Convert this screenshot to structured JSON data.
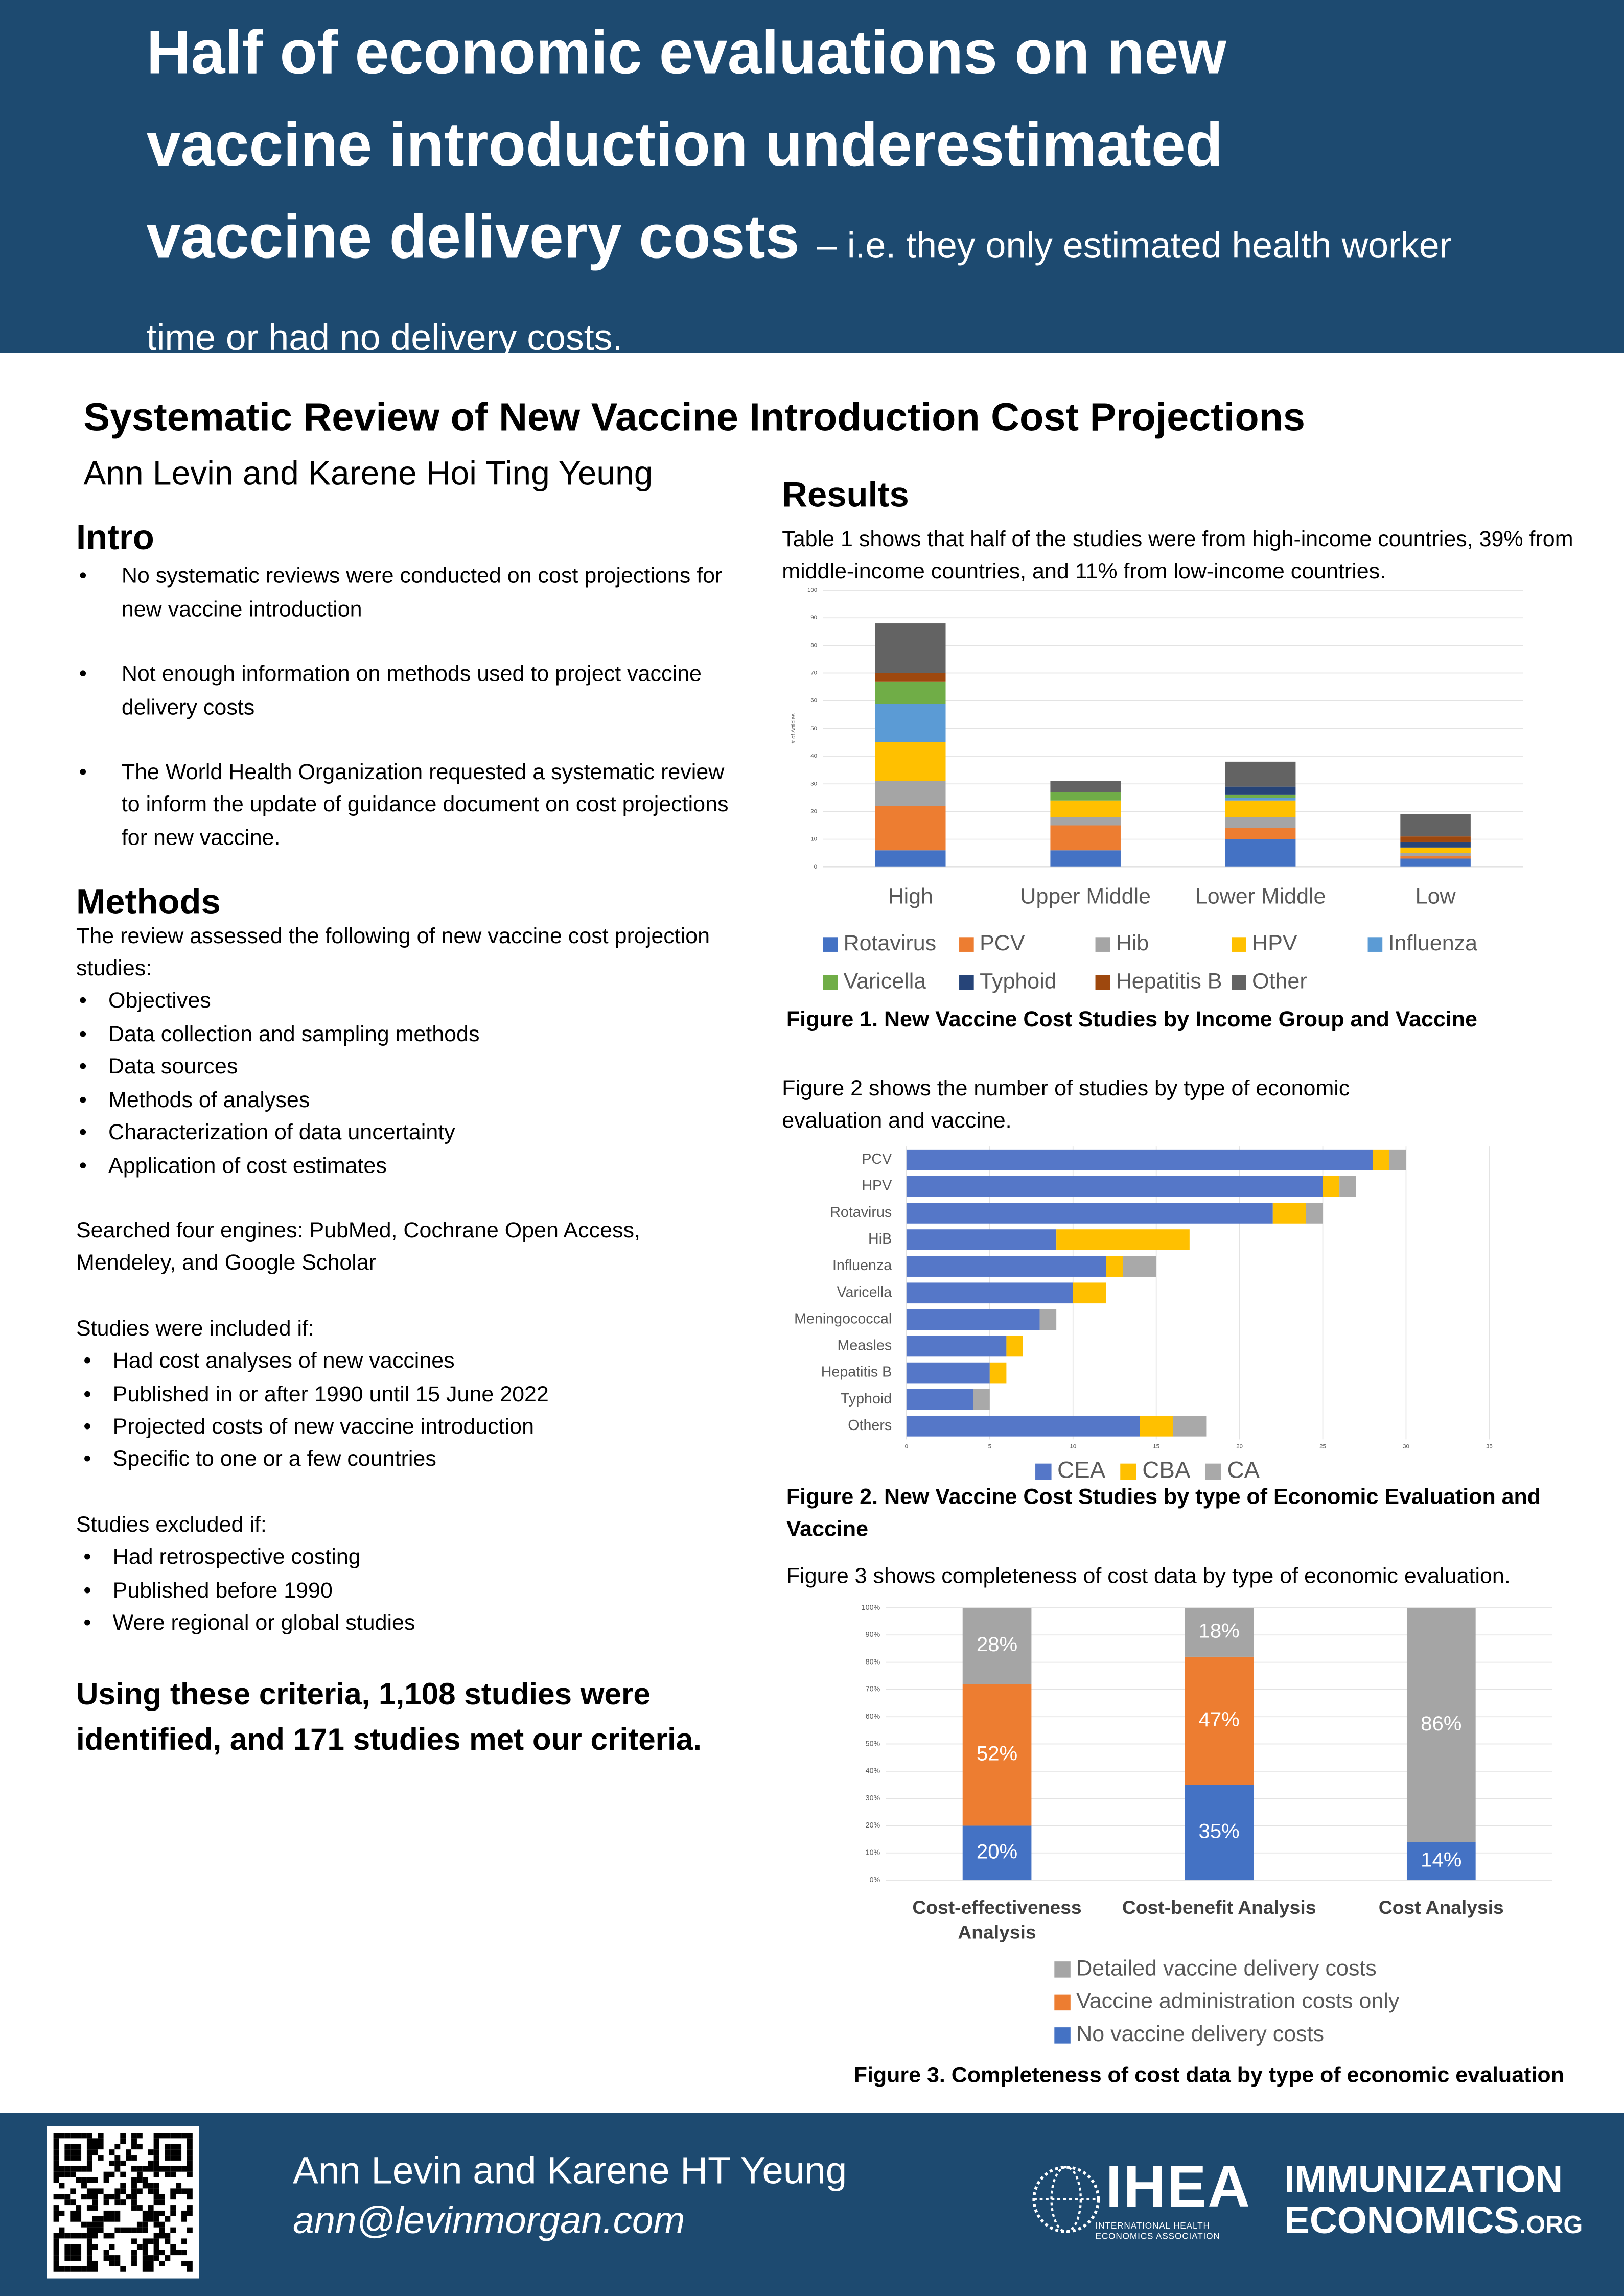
{
  "header": {
    "title": "Half of economic evaluations on new vaccine introduction underestimated vaccine delivery costs",
    "subtitle": "– i.e. they only estimated health worker time or had no delivery costs."
  },
  "poster": {
    "title": "Systematic Review of New Vaccine Introduction Cost Projections",
    "authors": "Ann Levin and Karene Hoi Ting Yeung"
  },
  "intro": {
    "heading": "Intro",
    "bullets": [
      "No systematic reviews were conducted on cost projections for new vaccine introduction",
      "Not enough information on methods used to project vaccine delivery costs",
      "The World Health Organization requested a systematic review to inform the update of guidance document on cost projections for new vaccine."
    ]
  },
  "methods": {
    "heading": "Methods",
    "lead": "The review assessed the following of new vaccine cost projection studies:",
    "items": [
      "Objectives",
      "Data collection and sampling methods",
      "Data sources",
      "Methods of analyses",
      "Characterization of data uncertainty",
      "Application of cost estimates"
    ],
    "search": "Searched four engines: PubMed, Cochrane Open Access, Mendeley, and Google Scholar",
    "included_heading": "Studies were included if:",
    "included": [
      "Had cost analyses of new vaccines",
      "Published in or after 1990 until 15 June 2022",
      "Projected costs of new vaccine introduction",
      "Specific to one or a few countries"
    ],
    "excluded_heading": "Studies excluded if:",
    "excluded": [
      "Had retrospective costing",
      "Published before 1990",
      "Were regional or global studies"
    ],
    "conclusion": "Using these criteria, 1,108 studies were identified, and 171 studies met our criteria."
  },
  "results": {
    "heading": "Results",
    "text1": "Table 1 shows that half of the studies were from high-income countries, 39% from middle-income countries, and 11% from low-income countries.",
    "text2": "Figure 2 shows the number of studies by type of economic evaluation and vaccine.",
    "text3": "Figure 3 shows completeness of cost data by type of economic evaluation."
  },
  "chart_data": [
    {
      "type": "bar",
      "title": "Figure 1. New Vaccine Cost Studies by Income Group and Vaccine",
      "y_label": "# of Articles",
      "categories": [
        "High",
        "Upper Middle",
        "Lower Middle",
        "Low"
      ],
      "series": [
        {
          "name": "Rotavirus",
          "color": "#4472c4",
          "values": [
            6,
            6,
            10,
            3
          ]
        },
        {
          "name": "PCV",
          "color": "#ed7d31",
          "values": [
            16,
            9,
            4,
            1
          ]
        },
        {
          "name": "Hib",
          "color": "#a5a5a5",
          "values": [
            9,
            3,
            4,
            1
          ]
        },
        {
          "name": "HPV",
          "color": "#ffc000",
          "values": [
            14,
            6,
            6,
            2
          ]
        },
        {
          "name": "Influenza",
          "color": "#5b9bd5",
          "values": [
            14,
            0,
            1,
            0
          ]
        },
        {
          "name": "Varicella",
          "color": "#70ad47",
          "values": [
            8,
            3,
            1,
            0
          ]
        },
        {
          "name": "Typhoid",
          "color": "#264478",
          "values": [
            0,
            0,
            3,
            2
          ]
        },
        {
          "name": "Hepatitis B",
          "color": "#9e480e",
          "values": [
            3,
            0,
            0,
            2
          ]
        },
        {
          "name": "Other",
          "color": "#636363",
          "values": [
            18,
            4,
            9,
            8
          ]
        }
      ],
      "ylim": [
        0,
        100
      ],
      "yticks": [
        0,
        10,
        20,
        30,
        40,
        50,
        60,
        70,
        80,
        90,
        100
      ],
      "grid": true,
      "legend": "bottom"
    },
    {
      "type": "bar",
      "orientation": "horizontal",
      "title": "Figure 2. New Vaccine Cost Studies by type of Economic Evaluation and Vaccine",
      "categories": [
        "PCV",
        "HPV",
        "Rotavirus",
        "HiB",
        "Influenza",
        "Varicella",
        "Meningococcal",
        "Measles",
        "Hepatitis B",
        "Typhoid",
        "Others"
      ],
      "series": [
        {
          "name": "CEA",
          "color": "#5577c8",
          "values": [
            28,
            25,
            22,
            9,
            12,
            10,
            8,
            6,
            5,
            4,
            14
          ]
        },
        {
          "name": "CBA",
          "color": "#ffc000",
          "values": [
            1,
            1,
            2,
            8,
            1,
            2,
            0,
            1,
            1,
            0,
            2
          ]
        },
        {
          "name": "CA",
          "color": "#a9a9a9",
          "values": [
            1,
            1,
            1,
            0,
            2,
            0,
            1,
            0,
            0,
            1,
            2
          ]
        }
      ],
      "xlim": [
        0,
        35
      ],
      "xticks": [
        0,
        5,
        10,
        15,
        20,
        25,
        30,
        35
      ],
      "grid": true,
      "legend": "bottom"
    },
    {
      "type": "bar",
      "title": "Figure 3. Completeness of cost data by type of economic evaluation",
      "categories": [
        "Cost-effectiveness Analysis",
        "Cost-benefit Analysis",
        "Cost Analysis"
      ],
      "series": [
        {
          "name": "No vaccine delivery costs",
          "color": "#4472c4",
          "values": [
            20,
            35,
            14
          ],
          "value_labels": [
            "20%",
            "35%",
            "14%"
          ]
        },
        {
          "name": "Vaccine administration costs only",
          "color": "#ed7d31",
          "values": [
            52,
            47,
            0
          ],
          "value_labels": [
            "52%",
            "47%",
            null
          ]
        },
        {
          "name": "Detailed vaccine delivery costs",
          "color": "#a5a5a5",
          "values": [
            28,
            18,
            86
          ],
          "value_labels": [
            "28%",
            "18%",
            "86%"
          ]
        }
      ],
      "ylim": [
        0,
        100
      ],
      "yticks": [
        {
          "value": 0,
          "label": "0%"
        },
        {
          "value": 10,
          "label": "10%"
        },
        {
          "value": 20,
          "label": "20%"
        },
        {
          "value": 30,
          "label": "30%"
        },
        {
          "value": 40,
          "label": "40%"
        },
        {
          "value": 50,
          "label": "50%"
        },
        {
          "value": 60,
          "label": "60%"
        },
        {
          "value": 70,
          "label": "70%"
        },
        {
          "value": 80,
          "label": "80%"
        },
        {
          "value": 90,
          "label": "90%"
        },
        {
          "value": 100,
          "label": "100%"
        }
      ],
      "grid": true,
      "legend": "bottom"
    }
  ],
  "footer": {
    "authors": "Ann Levin and Karene HT Yeung",
    "email": "ann@levinmorgan.com",
    "logo1": "IHEA",
    "logo1_sub": "INTERNATIONAL HEALTH ECONOMICS ASSOCIATION",
    "logo2_line1": "IMMUNIZATION",
    "logo2_line2": "ECONOMICS",
    "logo2_suffix": ".ORG"
  }
}
